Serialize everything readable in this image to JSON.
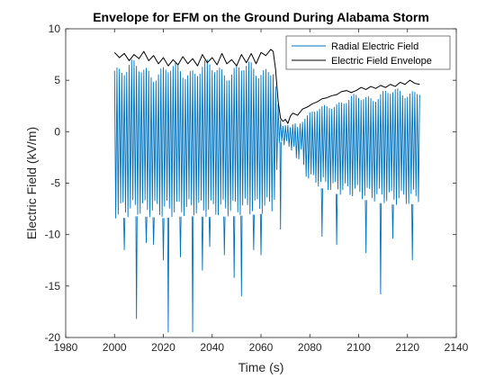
{
  "chart_data": {
    "type": "line",
    "title": "Envelope for EFM on the Ground During Alabama Storm",
    "xlabel": "Time (s)",
    "ylabel": "Electric Field (kV/m)",
    "xlim": [
      1980,
      2140
    ],
    "ylim": [
      -20,
      10
    ],
    "xticks": [
      1980,
      2000,
      2020,
      2040,
      2060,
      2080,
      2100,
      2120,
      2140
    ],
    "yticks": [
      -20,
      -15,
      -10,
      -5,
      0,
      5,
      10
    ],
    "xtick_labels": [
      "1980",
      "2000",
      "2020",
      "2040",
      "2060",
      "2080",
      "2100",
      "2120",
      "2140"
    ],
    "ytick_labels": [
      "-20",
      "-15",
      "-10",
      "-5",
      "0",
      "5",
      "10"
    ],
    "grid": false,
    "legend_position": "top-right",
    "series": [
      {
        "name": "Radial Electric Field",
        "color": "#0072BD",
        "oscillation_period_s": 1.0,
        "envelope_top": [
          [
            2000,
            7.4
          ],
          [
            2010,
            7.0
          ],
          [
            2020,
            6.8
          ],
          [
            2030,
            7.0
          ],
          [
            2040,
            7.1
          ],
          [
            2050,
            6.9
          ],
          [
            2060,
            7.2
          ],
          [
            2065,
            7.0
          ],
          [
            2067,
            3.0
          ],
          [
            2068,
            1.2
          ],
          [
            2070,
            0.8
          ],
          [
            2075,
            1.0
          ],
          [
            2080,
            2.0
          ],
          [
            2090,
            3.2
          ],
          [
            2100,
            3.8
          ],
          [
            2110,
            4.2
          ],
          [
            2120,
            4.6
          ],
          [
            2125,
            4.5
          ]
        ],
        "envelope_bottom": [
          [
            2000,
            -8.5
          ],
          [
            2010,
            -8.2
          ],
          [
            2020,
            -8.4
          ],
          [
            2030,
            -8.2
          ],
          [
            2040,
            -8.3
          ],
          [
            2050,
            -8.2
          ],
          [
            2060,
            -8.0
          ],
          [
            2065,
            -7.9
          ],
          [
            2067,
            -3.5
          ],
          [
            2068,
            -1.0
          ],
          [
            2070,
            -1.5
          ],
          [
            2075,
            -3.0
          ],
          [
            2080,
            -5.0
          ],
          [
            2090,
            -6.0
          ],
          [
            2100,
            -6.5
          ],
          [
            2110,
            -7.0
          ],
          [
            2120,
            -7.2
          ],
          [
            2125,
            -6.8
          ]
        ],
        "spikes": [
          [
            2004,
            -11.5
          ],
          [
            2009,
            -18.2
          ],
          [
            2013,
            -10.8
          ],
          [
            2016,
            -11.0
          ],
          [
            2020,
            -12.5
          ],
          [
            2022,
            -19.5
          ],
          [
            2027,
            -12.2
          ],
          [
            2032,
            -19.5
          ],
          [
            2036,
            -13.5
          ],
          [
            2039,
            -11.2
          ],
          [
            2045,
            -12.0
          ],
          [
            2049,
            -14.2
          ],
          [
            2052,
            -16.0
          ],
          [
            2057,
            -11.5
          ],
          [
            2060,
            -12.0
          ],
          [
            2068,
            -9.5
          ],
          [
            2085,
            -10.2
          ],
          [
            2091,
            -11.0
          ],
          [
            2103,
            -11.8
          ],
          [
            2109,
            -15.8
          ],
          [
            2114,
            -10.4
          ],
          [
            2122,
            -12.5
          ]
        ]
      },
      {
        "name": "Electric Field Envelope",
        "color": "#000000",
        "points": [
          [
            2000,
            7.7
          ],
          [
            2002,
            7.2
          ],
          [
            2004,
            7.6
          ],
          [
            2006,
            6.9
          ],
          [
            2008,
            7.5
          ],
          [
            2010,
            7.1
          ],
          [
            2012,
            7.8
          ],
          [
            2014,
            6.9
          ],
          [
            2016,
            7.4
          ],
          [
            2018,
            6.6
          ],
          [
            2020,
            7.2
          ],
          [
            2022,
            6.4
          ],
          [
            2024,
            7.0
          ],
          [
            2026,
            6.5
          ],
          [
            2028,
            7.3
          ],
          [
            2030,
            6.6
          ],
          [
            2032,
            7.1
          ],
          [
            2034,
            6.4
          ],
          [
            2036,
            7.5
          ],
          [
            2038,
            6.7
          ],
          [
            2040,
            7.2
          ],
          [
            2042,
            6.5
          ],
          [
            2044,
            7.6
          ],
          [
            2046,
            6.6
          ],
          [
            2048,
            7.0
          ],
          [
            2050,
            6.4
          ],
          [
            2052,
            7.5
          ],
          [
            2054,
            6.7
          ],
          [
            2056,
            7.6
          ],
          [
            2058,
            6.6
          ],
          [
            2060,
            7.7
          ],
          [
            2062,
            7.4
          ],
          [
            2064,
            8.0
          ],
          [
            2065,
            7.8
          ],
          [
            2066,
            6.0
          ],
          [
            2067,
            3.0
          ],
          [
            2068,
            1.3
          ],
          [
            2069,
            1.0
          ],
          [
            2070,
            1.2
          ],
          [
            2071,
            0.8
          ],
          [
            2072,
            1.5
          ],
          [
            2073,
            1.8
          ],
          [
            2075,
            1.6
          ],
          [
            2077,
            2.2
          ],
          [
            2079,
            2.4
          ],
          [
            2081,
            2.7
          ],
          [
            2083,
            2.9
          ],
          [
            2085,
            3.2
          ],
          [
            2087,
            3.3
          ],
          [
            2089,
            3.5
          ],
          [
            2091,
            3.6
          ],
          [
            2093,
            3.9
          ],
          [
            2095,
            4.0
          ],
          [
            2097,
            3.8
          ],
          [
            2099,
            4.0
          ],
          [
            2101,
            4.3
          ],
          [
            2103,
            4.1
          ],
          [
            2105,
            4.4
          ],
          [
            2107,
            4.2
          ],
          [
            2109,
            4.5
          ],
          [
            2111,
            4.3
          ],
          [
            2113,
            4.6
          ],
          [
            2115,
            4.4
          ],
          [
            2117,
            4.8
          ],
          [
            2119,
            4.6
          ],
          [
            2121,
            5.0
          ],
          [
            2123,
            4.7
          ],
          [
            2125,
            4.6
          ]
        ]
      }
    ]
  }
}
